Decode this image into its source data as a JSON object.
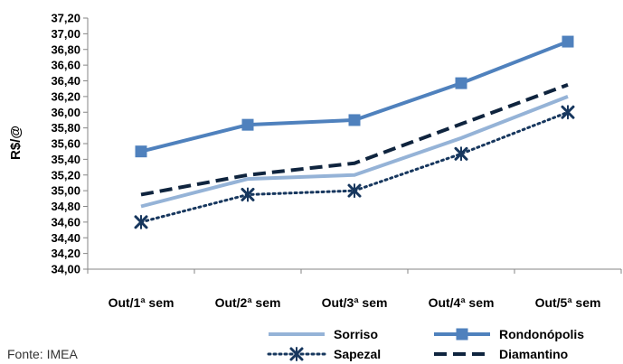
{
  "chart_data": {
    "type": "line",
    "title": "",
    "xlabel": "",
    "ylabel": "R$/@",
    "categories": [
      "Out/1ª sem",
      "Out/2ª sem",
      "Out/3ª sem",
      "Out/4ª sem",
      "Out/5ª sem"
    ],
    "ylim": [
      34.0,
      37.2
    ],
    "ytick_step": 0.2,
    "yticks": [
      "34,00",
      "34,20",
      "34,40",
      "34,60",
      "34,80",
      "35,00",
      "35,20",
      "35,40",
      "35,60",
      "35,80",
      "36,00",
      "36,20",
      "36,40",
      "36,60",
      "36,80",
      "37,00",
      "37,20"
    ],
    "grid": false,
    "legend_position": "bottom",
    "series": [
      {
        "name": "Sorriso",
        "values": [
          34.8,
          35.15,
          35.2,
          35.67,
          36.2
        ],
        "color": "#95b3d7",
        "style": "solid",
        "marker": "none"
      },
      {
        "name": "Rondonópolis",
        "values": [
          35.5,
          35.84,
          35.9,
          36.37,
          36.9
        ],
        "color": "#4f81bd",
        "style": "solid",
        "marker": "square"
      },
      {
        "name": "Sapezal",
        "values": [
          34.6,
          34.95,
          35.0,
          35.47,
          36.0
        ],
        "color": "#17375e",
        "style": "dotted",
        "marker": "x"
      },
      {
        "name": "Diamantino",
        "values": [
          34.95,
          35.2,
          35.35,
          35.85,
          36.35
        ],
        "color": "#0f243e",
        "style": "dashed",
        "marker": "none"
      }
    ],
    "source": "Fonte: IMEA"
  }
}
